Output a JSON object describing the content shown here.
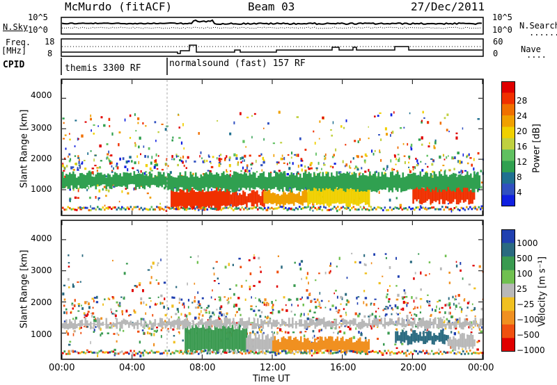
{
  "header": {
    "station": "McMurdo (fitACF)",
    "beam": "Beam 03",
    "date": "27/Dec/2011"
  },
  "noise_panel": {
    "left_label": "N.Sky",
    "left_ticks": [
      "10^5",
      "10^0"
    ],
    "right_ticks": [
      "10^5",
      "10^0"
    ],
    "right_label": "N.Search",
    "right_legend": "........"
  },
  "freq_panel": {
    "left_label_top": "Freq.",
    "left_label_unit": "[MHz]",
    "left_ticks": [
      "18",
      "8"
    ],
    "right_ticks": [
      "60",
      "0"
    ],
    "right_label": "Nave",
    "right_legend": "...."
  },
  "cpid": {
    "label": "CPID",
    "segments": [
      {
        "text": "themis 3300 RF",
        "start_ut": 0.0,
        "end_ut": 6.0
      },
      {
        "text": "normalsound (fast) 157 RF",
        "start_ut": 6.0,
        "end_ut": 24.0
      }
    ]
  },
  "power_panel": {
    "ylabel": "Slant Range [km]",
    "yticks": [
      "1000",
      "2000",
      "3000",
      "4000"
    ],
    "colorbar_label": "Power [dB]",
    "colorbar_ticks": [
      "28",
      "24",
      "20",
      "16",
      "12",
      "8",
      "4"
    ],
    "colors": [
      "#e00000",
      "#f03000",
      "#f07000",
      "#f0a000",
      "#f0d000",
      "#c0d040",
      "#60c060",
      "#30a050",
      "#207090",
      "#3050c0",
      "#1020e0"
    ]
  },
  "velocity_panel": {
    "ylabel": "Slant Range [km]",
    "yticks": [
      "1000",
      "2000",
      "3000",
      "4000"
    ],
    "colorbar_label": "Velocity [m s⁻¹]",
    "colorbar_ticks": [
      "1000",
      "500",
      "100",
      "25",
      "−25",
      "−100",
      "−500",
      "−1000"
    ],
    "colors": [
      "#2040b0",
      "#2a6a80",
      "#3a9a50",
      "#70c050",
      "#b8b8b8",
      "#f0c020",
      "#f09020",
      "#f05010",
      "#e00000"
    ]
  },
  "xaxis": {
    "label": "Time UT",
    "ticks": [
      "00:00",
      "04:00",
      "08:00",
      "12:00",
      "16:00",
      "20:00",
      "00:00"
    ]
  },
  "chart_data": [
    {
      "type": "heatmap",
      "title": "Power",
      "xlabel": "Time UT",
      "ylabel": "Slant Range [km]",
      "xlim": [
        0,
        24
      ],
      "ylim": [
        180,
        4600
      ],
      "zlim": [
        0,
        30
      ],
      "zlabel": "Power [dB]",
      "bands": [
        {
          "t": [
            6.2,
            9.5
          ],
          "range": [
            400,
            1000
          ],
          "power": 28
        },
        {
          "t": [
            9.5,
            11.5
          ],
          "range": [
            500,
            900
          ],
          "power": 26
        },
        {
          "t": [
            11.5,
            14.0
          ],
          "range": [
            500,
            900
          ],
          "power": 22
        },
        {
          "t": [
            14.0,
            17.5
          ],
          "range": [
            500,
            1100
          ],
          "power": 18
        },
        {
          "t": [
            20.0,
            23.5
          ],
          "range": [
            600,
            1100
          ],
          "power": 28
        },
        {
          "t": [
            6.0,
            23.8
          ],
          "range": [
            1000,
            1500
          ],
          "power": 8
        },
        {
          "t": [
            0.0,
            6.0
          ],
          "range": [
            1100,
            1500
          ],
          "power": 10
        }
      ]
    },
    {
      "type": "heatmap",
      "title": "Velocity",
      "xlabel": "Time UT",
      "ylabel": "Slant Range [km]",
      "xlim": [
        0,
        24
      ],
      "ylim": [
        180,
        4600
      ],
      "zlim": [
        -1000,
        1000
      ],
      "zlabel": "Velocity [m s-1]",
      "bands": [
        {
          "t": [
            7.0,
            10.5
          ],
          "range": [
            400,
            1200
          ],
          "velocity": 100
        },
        {
          "t": [
            10.5,
            12.0
          ],
          "range": [
            400,
            900
          ],
          "velocity": -25
        },
        {
          "t": [
            12.0,
            17.5
          ],
          "range": [
            400,
            800
          ],
          "velocity": -100
        },
        {
          "t": [
            19.0,
            22.0
          ],
          "range": [
            700,
            1000
          ],
          "velocity": 500
        },
        {
          "t": [
            22.0,
            23.5
          ],
          "range": [
            500,
            900
          ],
          "velocity": -25
        },
        {
          "t": [
            0.0,
            24.0
          ],
          "range": [
            1200,
            1400
          ],
          "velocity": 25
        }
      ]
    }
  ]
}
